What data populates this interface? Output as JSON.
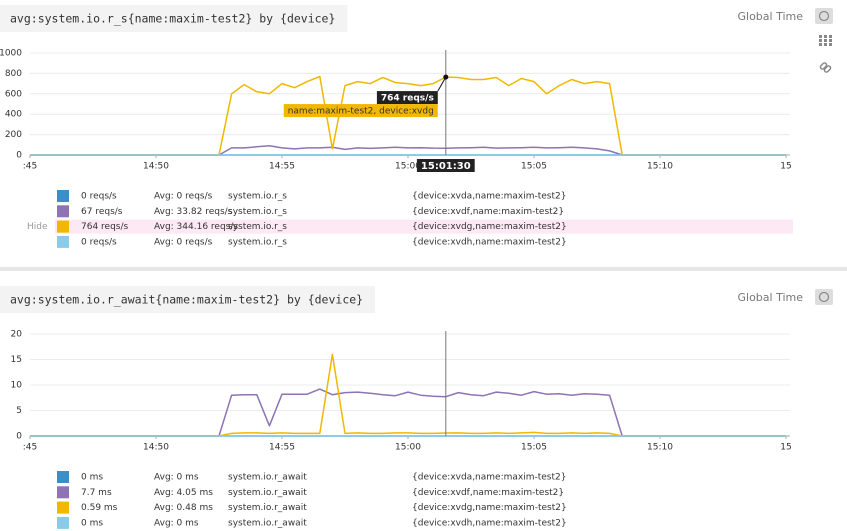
{
  "chart_data": [
    {
      "type": "line",
      "title": "avg:system.io.r_s{name:maxim-test2} by {device}",
      "time_button": "Global Time",
      "x": [
        885,
        892.5,
        893,
        893.5,
        894,
        894.5,
        895,
        895.5,
        896,
        896.5,
        897,
        897.5,
        898,
        898.5,
        899,
        899.5,
        900,
        900.5,
        901,
        901.5,
        902,
        902.5,
        903,
        903.5,
        904,
        904.5,
        905,
        905.5,
        906,
        906.5,
        907,
        907.5,
        908,
        908.5,
        915
      ],
      "xlim": [
        885,
        915
      ],
      "xticks": [
        {
          "value": 885,
          "label": ":45"
        },
        {
          "value": 890,
          "label": "14:50"
        },
        {
          "value": 895,
          "label": "14:55"
        },
        {
          "value": 900,
          "label": "15:00"
        },
        {
          "value": 905,
          "label": "15:05"
        },
        {
          "value": 910,
          "label": "15:10"
        },
        {
          "value": 915,
          "label": "15"
        }
      ],
      "ylim": [
        0,
        1000
      ],
      "yticks": [
        0,
        200,
        400,
        600,
        800,
        1000
      ],
      "grid": true,
      "crosshair_x": 901.5,
      "tooltip": {
        "series": 2,
        "value_label": "764 reqs/s",
        "series_label": "name:maxim-test2, device:xvdg",
        "x_label": "15:01:30"
      },
      "hide_label": "Hide",
      "series": [
        {
          "name": "{device:xvda,name:maxim-test2}",
          "color": "#3b8ec6",
          "legend_value": "0 reqs/s",
          "legend_avg": "Avg: 0 reqs/s",
          "metric": "system.io.r_s",
          "values": [
            0,
            0,
            0,
            0,
            0,
            0,
            0,
            0,
            0,
            0,
            0,
            0,
            0,
            0,
            0,
            0,
            0,
            0,
            0,
            0,
            0,
            0,
            0,
            0,
            0,
            0,
            0,
            0,
            0,
            0,
            0,
            0,
            0,
            0,
            0
          ]
        },
        {
          "name": "{device:xvdf,name:maxim-test2}",
          "color": "#8e73b5",
          "legend_value": "67 reqs/s",
          "legend_avg": "Avg: 33.82 reqs/s",
          "metric": "system.io.r_s",
          "values": [
            0,
            0,
            70,
            70,
            80,
            90,
            70,
            60,
            70,
            70,
            75,
            55,
            70,
            65,
            70,
            75,
            70,
            72,
            68,
            67,
            70,
            72,
            75,
            68,
            70,
            72,
            75,
            70,
            72,
            75,
            70,
            60,
            40,
            0,
            0
          ]
        },
        {
          "name": "{device:xvdg,name:maxim-test2}",
          "color": "#f0b800",
          "legend_value": "764 reqs/s",
          "legend_avg": "Avg: 344.16 reqs/s",
          "metric": "system.io.r_s",
          "values": [
            0,
            0,
            600,
            690,
            620,
            600,
            700,
            660,
            720,
            770,
            60,
            680,
            720,
            700,
            760,
            710,
            700,
            680,
            700,
            764,
            760,
            740,
            740,
            760,
            680,
            750,
            720,
            600,
            680,
            740,
            700,
            720,
            700,
            0,
            0
          ]
        },
        {
          "name": "{device:xvdh,name:maxim-test2}",
          "color": "#8ccbe8",
          "legend_value": "0 reqs/s",
          "legend_avg": "Avg: 0 reqs/s",
          "metric": "system.io.r_s",
          "values": [
            0,
            0,
            0,
            0,
            0,
            0,
            0,
            0,
            0,
            0,
            0,
            0,
            0,
            0,
            0,
            0,
            0,
            0,
            0,
            0,
            0,
            0,
            0,
            0,
            0,
            0,
            0,
            0,
            0,
            0,
            0,
            0,
            0,
            0,
            0
          ]
        }
      ]
    },
    {
      "type": "line",
      "title": "avg:system.io.r_await{name:maxim-test2} by {device}",
      "time_button": "Global Time",
      "x": [
        885,
        892.5,
        893,
        893.5,
        894,
        894.5,
        895,
        895.5,
        896,
        896.5,
        897,
        897.5,
        898,
        898.5,
        899,
        899.5,
        900,
        900.5,
        901,
        901.5,
        902,
        902.5,
        903,
        903.5,
        904,
        904.5,
        905,
        905.5,
        906,
        906.5,
        907,
        907.5,
        908,
        908.5,
        915
      ],
      "xlim": [
        885,
        915
      ],
      "xticks": [
        {
          "value": 885,
          "label": ":45"
        },
        {
          "value": 890,
          "label": "14:50"
        },
        {
          "value": 895,
          "label": "14:55"
        },
        {
          "value": 900,
          "label": "15:00"
        },
        {
          "value": 905,
          "label": "15:05"
        },
        {
          "value": 910,
          "label": "15:10"
        },
        {
          "value": 915,
          "label": "15"
        }
      ],
      "ylim": [
        0,
        20
      ],
      "yticks": [
        0,
        5,
        10,
        15,
        20
      ],
      "grid": true,
      "crosshair_x": 901.5,
      "series": [
        {
          "name": "{device:xvda,name:maxim-test2}",
          "color": "#3b8ec6",
          "legend_value": "0 ms",
          "legend_avg": "Avg: 0 ms",
          "metric": "system.io.r_await",
          "values": [
            0,
            0,
            0,
            0,
            0,
            0,
            0,
            0,
            0,
            0,
            0,
            0,
            0,
            0,
            0,
            0,
            0,
            0,
            0,
            0,
            0,
            0,
            0,
            0,
            0,
            0,
            0,
            0,
            0,
            0,
            0,
            0,
            0,
            0,
            0
          ]
        },
        {
          "name": "{device:xvdf,name:maxim-test2}",
          "color": "#8e73b5",
          "legend_value": "7.7 ms",
          "legend_avg": "Avg: 4.05 ms",
          "metric": "system.io.r_await",
          "values": [
            0,
            0,
            8,
            8.1,
            8.1,
            2,
            8.2,
            8.2,
            8.2,
            9.2,
            8.1,
            8.5,
            8.6,
            8.4,
            8.1,
            7.9,
            8.6,
            8.0,
            7.8,
            7.7,
            8.5,
            8.1,
            7.9,
            8.6,
            8.4,
            8.0,
            8.7,
            8.2,
            8.3,
            8.0,
            8.3,
            8.2,
            8.0,
            0,
            0
          ]
        },
        {
          "name": "{device:xvdg,name:maxim-test2}",
          "color": "#f0b800",
          "legend_value": "0.59 ms",
          "legend_avg": "Avg: 0.48 ms",
          "metric": "system.io.r_await",
          "values": [
            0,
            0,
            0.5,
            0.6,
            0.6,
            0.5,
            0.6,
            0.5,
            0.5,
            0.5,
            16,
            0.5,
            0.6,
            0.5,
            0.5,
            0.6,
            0.6,
            0.5,
            0.5,
            0.59,
            0.6,
            0.5,
            0.5,
            0.6,
            0.5,
            0.6,
            0.7,
            0.5,
            0.5,
            0.6,
            0.5,
            0.6,
            0.5,
            0,
            0
          ]
        },
        {
          "name": "{device:xvdh,name:maxim-test2}",
          "color": "#8ccbe8",
          "legend_value": "0 ms",
          "legend_avg": "Avg: 0 ms",
          "metric": "system.io.r_await",
          "values": [
            0,
            0,
            0,
            0,
            0,
            0,
            0,
            0,
            0,
            0,
            0,
            0,
            0,
            0,
            0,
            0,
            0,
            0,
            0,
            0,
            0,
            0,
            0,
            0,
            0,
            0,
            0,
            0,
            0,
            0,
            0,
            0,
            0,
            0,
            0
          ]
        }
      ]
    }
  ]
}
